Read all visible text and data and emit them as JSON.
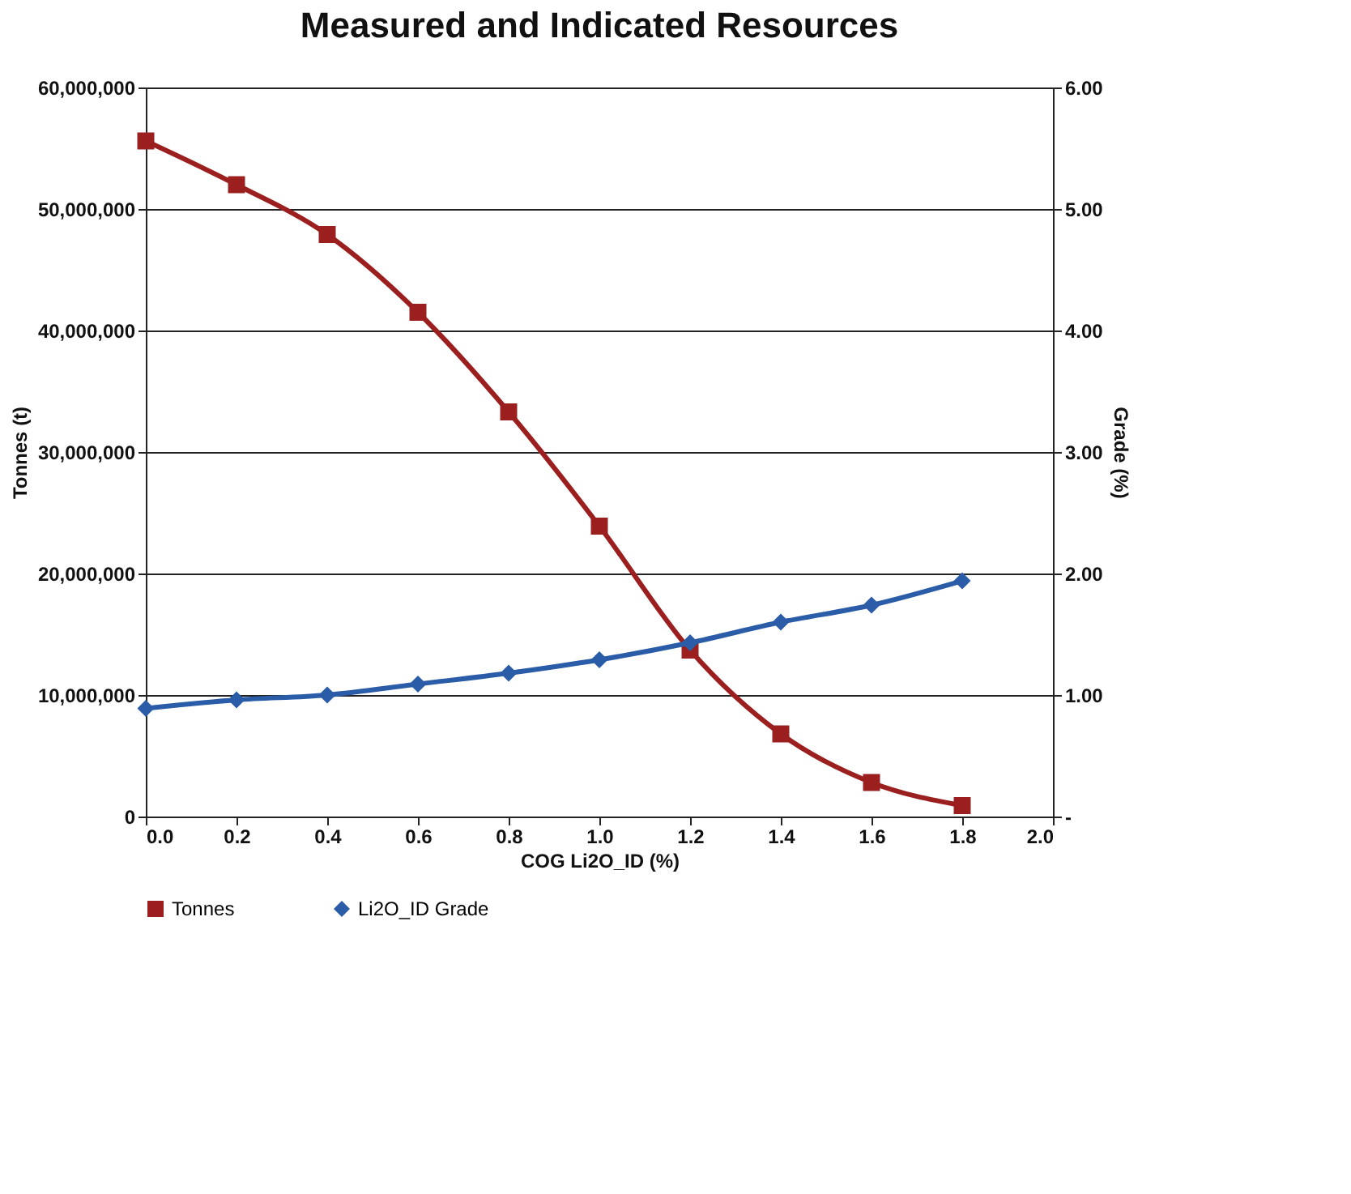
{
  "chart_data": {
    "type": "line",
    "title": "Measured and Indicated Resources",
    "xlabel": "COG Li2O_ID (%)",
    "ylabel": "Tonnes (t)",
    "y2label": "Grade (%)",
    "x": [
      0.0,
      0.2,
      0.4,
      0.6,
      0.8,
      1.0,
      1.2,
      1.4,
      1.6,
      1.8
    ],
    "series": [
      {
        "name": "Tonnes",
        "color": "#9b1f1f",
        "marker": "square",
        "values": [
          55600000,
          52000000,
          47900000,
          41500000,
          33300000,
          23900000,
          13700000,
          6800000,
          2800000,
          900000
        ]
      },
      {
        "name": "Li2O_ID Grade",
        "color": "#2a5ca8",
        "marker": "diamond",
        "axis": "y2",
        "values": [
          0.89,
          0.96,
          1.0,
          1.09,
          1.18,
          1.29,
          1.43,
          1.6,
          1.74,
          1.94
        ]
      }
    ],
    "xlim": [
      0.0,
      2.0
    ],
    "xticks": [
      {
        "value": 0,
        "label": "0.0"
      },
      {
        "value": 0.2,
        "label": "0.2"
      },
      {
        "value": 0.4,
        "label": "0.4"
      },
      {
        "value": 0.6,
        "label": "0.6"
      },
      {
        "value": 0.8,
        "label": "0.8"
      },
      {
        "value": 1.0,
        "label": "1.0"
      },
      {
        "value": 1.2,
        "label": "1.2"
      },
      {
        "value": 1.4,
        "label": "1.4"
      },
      {
        "value": 1.6,
        "label": "1.6"
      },
      {
        "value": 1.8,
        "label": "1.8"
      },
      {
        "value": 2.0,
        "label": "2.0"
      }
    ],
    "ylim": [
      0,
      60000000
    ],
    "yticks": [
      {
        "value": 0,
        "label": "0"
      },
      {
        "value": 10000000,
        "label": "10,000,000"
      },
      {
        "value": 20000000,
        "label": "20,000,000"
      },
      {
        "value": 30000000,
        "label": "30,000,000"
      },
      {
        "value": 40000000,
        "label": "40,000,000"
      },
      {
        "value": 50000000,
        "label": "50,000,000"
      },
      {
        "value": 60000000,
        "label": "60,000,000"
      }
    ],
    "y2lim": [
      0,
      6
    ],
    "y2ticks": [
      {
        "value": 0,
        "label": "-"
      },
      {
        "value": 1,
        "label": "1.00"
      },
      {
        "value": 2,
        "label": "2.00"
      },
      {
        "value": 3,
        "label": "3.00"
      },
      {
        "value": 4,
        "label": "4.00"
      },
      {
        "value": 5,
        "label": "5.00"
      },
      {
        "value": 6,
        "label": "6.00"
      }
    ],
    "grid": "y",
    "legend": "bottom"
  }
}
